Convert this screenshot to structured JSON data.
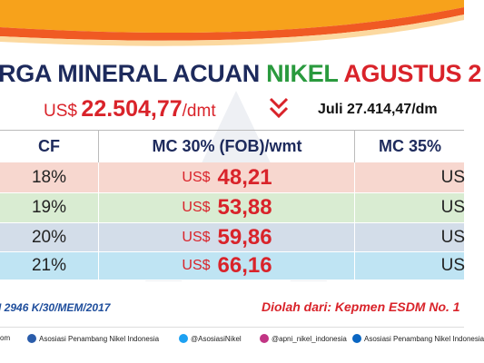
{
  "header": {
    "title_start": "RGA MINERAL ACUAN",
    "title_highlight": "NIKEL",
    "title_end": "AGUSTUS 2",
    "price_currency": "US$",
    "price_value": "22.504,77",
    "price_unit": "/dmt",
    "previous": "Juli 27.414,47/dm"
  },
  "table": {
    "columns": [
      "CF",
      "MC 30% (FOB)/wmt",
      "MC 35%"
    ],
    "rows": [
      [
        "18%",
        "US$",
        "48,21",
        "US"
      ],
      [
        "19%",
        "US$",
        "53,88",
        "US"
      ],
      [
        "20%",
        "US$",
        "59,86",
        "US"
      ],
      [
        "21%",
        "US$",
        "66,16",
        "US"
      ]
    ]
  },
  "footer": {
    "reference": "I 2946 K/30/MEM/2017",
    "source": "Diolah dari: Kepmen ESDM No. 1"
  },
  "social": [
    "om",
    "Asosiasi Penambang Nikel Indonesia",
    "@AsosiasiNikel",
    "@apni_nikel_indonesia",
    "Asosiasi Penambang Nikel Indonesia"
  ]
}
